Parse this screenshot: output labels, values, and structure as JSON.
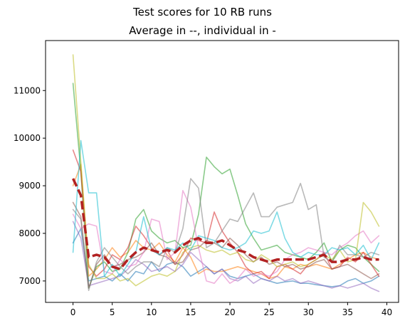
{
  "chart_data": {
    "type": "line",
    "title": "Test scores for 10 RB runs",
    "subtitle": "Average in --, individual in -",
    "xlabel": "",
    "ylabel": "",
    "xlim": [
      -3.5,
      41.5
    ],
    "ylim": [
      6550,
      12050
    ],
    "xticks": [
      0,
      5,
      10,
      15,
      20,
      25,
      30,
      35,
      40
    ],
    "yticks": [
      7000,
      8000,
      9000,
      10000,
      11000
    ],
    "grid": false,
    "x": [
      0,
      1,
      2,
      3,
      4,
      5,
      6,
      7,
      8,
      9,
      10,
      11,
      12,
      13,
      14,
      15,
      16,
      17,
      18,
      19,
      20,
      21,
      22,
      23,
      24,
      25,
      26,
      27,
      28,
      29,
      30,
      31,
      32,
      33,
      34,
      35,
      36,
      37,
      38,
      39
    ],
    "series": [
      {
        "color": "#1f77b4",
        "style": "solid",
        "values": [
          7800,
          8100,
          7000,
          7050,
          7100,
          7000,
          7150,
          7000,
          7200,
          7150,
          7400,
          7200,
          7350,
          7400,
          7300,
          7100,
          7200,
          7300,
          7150,
          7250,
          7100,
          7050,
          7100,
          7150,
          7050,
          7000,
          6950,
          6980,
          7000,
          6950,
          6950,
          6920,
          6900,
          6880,
          6900,
          7000,
          7050,
          6950,
          7000,
          7100
        ]
      },
      {
        "color": "#ff7f0e",
        "style": "solid",
        "values": [
          9000,
          9450,
          7100,
          7250,
          7450,
          7700,
          7500,
          7600,
          7850,
          7700,
          7650,
          7800,
          7550,
          7400,
          7700,
          7500,
          7150,
          7250,
          7200,
          7200,
          7250,
          7300,
          7250,
          7200,
          7150,
          7050,
          7100,
          7300,
          7250,
          7350,
          7300,
          7350,
          7300,
          7250,
          7350,
          7450,
          7550,
          7600,
          7500,
          7450
        ]
      },
      {
        "color": "#2ca02c",
        "style": "solid",
        "values": [
          11150,
          9300,
          6850,
          7300,
          7400,
          7200,
          7250,
          7600,
          8300,
          8500,
          8050,
          7900,
          7800,
          7850,
          7700,
          7750,
          8400,
          9600,
          9400,
          9250,
          9350,
          8800,
          8200,
          7900,
          7650,
          7700,
          7750,
          7600,
          7550,
          7500,
          7450,
          7600,
          7800,
          7400,
          7650,
          7750,
          7700,
          7500,
          7350,
          7200
        ]
      },
      {
        "color": "#d62728",
        "style": "solid",
        "values": [
          9750,
          9300,
          7300,
          7100,
          7250,
          7550,
          7450,
          7700,
          8150,
          7950,
          7700,
          7550,
          7650,
          7350,
          7550,
          7900,
          7850,
          7800,
          8450,
          8050,
          7800,
          7600,
          7300,
          7150,
          7200,
          7050,
          7300,
          7350,
          7250,
          7150,
          7350,
          7450,
          7600,
          7250,
          7300,
          7500,
          7400,
          7600,
          7350,
          7100
        ]
      },
      {
        "color": "#9467bd",
        "style": "solid",
        "values": [
          8250,
          7900,
          6900,
          6950,
          7000,
          7050,
          7100,
          7250,
          7450,
          7350,
          7200,
          7250,
          7300,
          7200,
          7350,
          7600,
          7450,
          7300,
          7150,
          7250,
          7050,
          7000,
          7100,
          6950,
          7050,
          7000,
          7100,
          7000,
          7050,
          6950,
          7000,
          6950,
          6900,
          6850,
          6900,
          6850,
          6900,
          6950,
          6850,
          6780
        ]
      },
      {
        "color": "#8c564b",
        "style": "solid",
        "values": [
          8650,
          8350,
          6850,
          7350,
          7550,
          7300,
          7350,
          7450,
          7500,
          7600,
          7800,
          7550,
          7500,
          7350,
          7400,
          7650,
          7700,
          7850,
          7800,
          7700,
          7900,
          7750,
          7550,
          7400,
          7500,
          7350,
          7400,
          7300,
          7350,
          7250,
          7300,
          7400,
          7450,
          7250,
          7300,
          7350,
          7250,
          7150,
          7050,
          7150
        ]
      },
      {
        "color": "#e377c2",
        "style": "solid",
        "values": [
          8400,
          8100,
          8200,
          8150,
          7200,
          7150,
          7450,
          7300,
          7350,
          7600,
          8300,
          8250,
          7450,
          7600,
          8900,
          8550,
          7700,
          7000,
          6950,
          7150,
          6950,
          7050,
          7250,
          7100,
          7150,
          7100,
          7200,
          7450,
          7550,
          7600,
          7700,
          7650,
          7600,
          7550,
          7700,
          7800,
          7950,
          8050,
          7800,
          7950
        ]
      },
      {
        "color": "#7f7f7f",
        "style": "solid",
        "values": [
          8500,
          8300,
          6800,
          7400,
          7700,
          7500,
          7300,
          7150,
          7300,
          7400,
          7400,
          7300,
          7700,
          7600,
          8100,
          9150,
          8950,
          7700,
          7800,
          8050,
          8300,
          8250,
          8550,
          8850,
          8350,
          8350,
          8550,
          8600,
          8650,
          9050,
          8500,
          8600,
          7500,
          7400,
          7750,
          7550,
          7550,
          7500,
          7600,
          7550
        ]
      },
      {
        "color": "#bcbd22",
        "style": "solid",
        "values": [
          11750,
          9500,
          7350,
          7050,
          7050,
          7150,
          7000,
          7050,
          6900,
          7000,
          7100,
          7150,
          7100,
          7200,
          7600,
          7700,
          7750,
          7650,
          7600,
          7650,
          7550,
          7600,
          7450,
          7400,
          7550,
          7450,
          7300,
          7350,
          7400,
          7300,
          7350,
          7450,
          7550,
          7450,
          7650,
          7400,
          7450,
          8650,
          8450,
          8150
        ]
      },
      {
        "color": "#17becf",
        "style": "solid",
        "values": [
          7600,
          9950,
          8850,
          8850,
          7100,
          7350,
          7100,
          7350,
          7600,
          8350,
          7650,
          7550,
          7700,
          7650,
          7800,
          7650,
          7950,
          7900,
          7850,
          7700,
          7650,
          7700,
          7800,
          8050,
          8000,
          8050,
          8450,
          7900,
          7600,
          7500,
          7600,
          7550,
          7550,
          7700,
          7650,
          7700,
          7550,
          7750,
          7450,
          7800
        ]
      },
      {
        "color": "#b22222",
        "style": "dashed",
        "values": [
          9150,
          8800,
          7500,
          7550,
          7500,
          7300,
          7250,
          7450,
          7600,
          7700,
          7650,
          7600,
          7650,
          7600,
          7750,
          7850,
          7900,
          7800,
          7800,
          7850,
          7750,
          7650,
          7600,
          7500,
          7450,
          7400,
          7450,
          7450,
          7450,
          7450,
          7450,
          7500,
          7550,
          7400,
          7400,
          7450,
          7450,
          7500,
          7450,
          7450
        ]
      }
    ]
  }
}
